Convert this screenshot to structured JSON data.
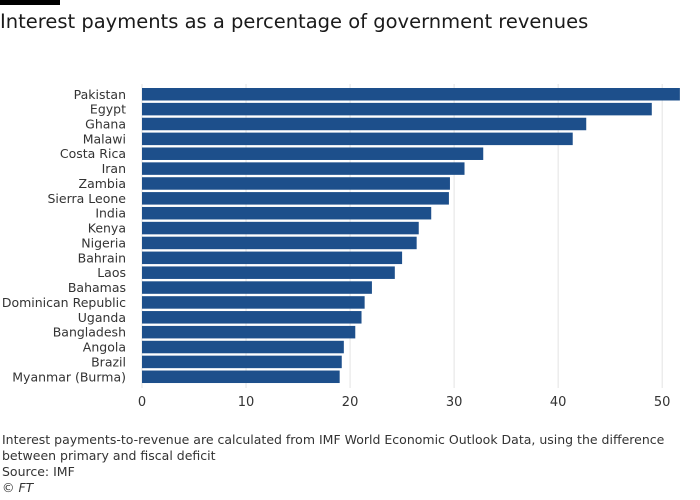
{
  "title": "Interest payments as a percentage of government revenues",
  "footer": {
    "note": "Interest payments-to-revenue are calculated from IMF World Economic Outlook Data, using the difference between primary and fiscal deficit",
    "source": "Source: IMF",
    "credit": "© FT"
  },
  "colors": {
    "bar": "#1d4f8b",
    "grid": "#e3e3e3",
    "axis_text": "#333333"
  },
  "chart_data": {
    "type": "bar",
    "orientation": "horizontal",
    "title": "Interest payments as a percentage of government revenues",
    "categories": [
      "Pakistan",
      "Egypt",
      "Ghana",
      "Malawi",
      "Costa Rica",
      "Iran",
      "Zambia",
      "Sierra Leone",
      "India",
      "Kenya",
      "Nigeria",
      "Bahrain",
      "Laos",
      "Bahamas",
      "Dominican Republic",
      "Uganda",
      "Bangladesh",
      "Angola",
      "Brazil",
      "Myanmar (Burma)"
    ],
    "values": [
      51.7,
      49.0,
      42.7,
      41.4,
      32.8,
      31.0,
      29.6,
      29.5,
      27.8,
      26.6,
      26.4,
      25.0,
      24.3,
      22.1,
      21.4,
      21.1,
      20.5,
      19.4,
      19.2,
      19.0
    ],
    "xlim": [
      0,
      52
    ],
    "xticks": [
      0,
      10,
      20,
      30,
      40,
      50
    ],
    "grid": true
  }
}
